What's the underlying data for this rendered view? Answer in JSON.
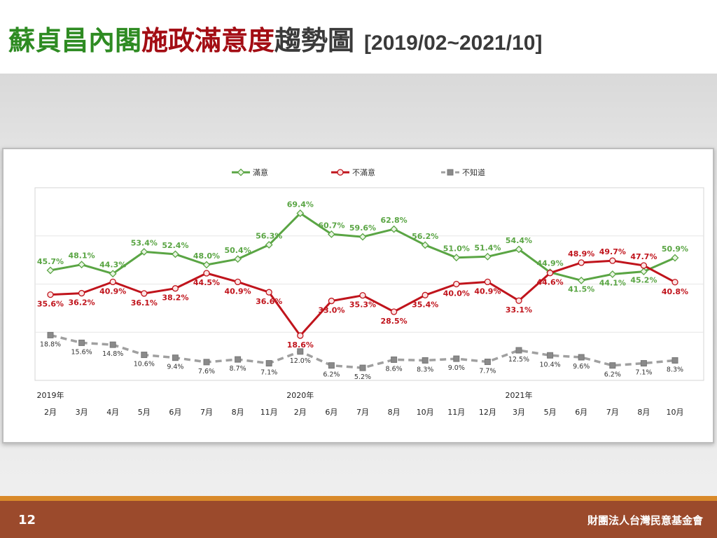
{
  "header": {
    "title_part1": "蘇貞昌內閣",
    "title_part2": "施政滿意度",
    "title_part3": "趨勢圖",
    "title_range": "[2019/02~2021/10]"
  },
  "footer": {
    "page_number": "12",
    "organization": "財團法人台灣民意基金會"
  },
  "colors": {
    "satisfied": "#5aa544",
    "dissatisfied": "#c0141c",
    "unknown": "#a0a0a0",
    "footer_bg": "#9b4a2c",
    "footer_accent": "#d98a2a"
  },
  "chart_data": {
    "type": "line",
    "categories": [
      "2月",
      "3月",
      "4月",
      "5月",
      "6月",
      "7月",
      "8月",
      "11月",
      "2月",
      "6月",
      "7月",
      "8月",
      "10月",
      "11月",
      "12月",
      "3月",
      "5月",
      "6月",
      "7月",
      "8月",
      "10月"
    ],
    "year_labels": [
      {
        "index": 0,
        "label": "2019年"
      },
      {
        "index": 8,
        "label": "2020年"
      },
      {
        "index": 15,
        "label": "2021年"
      }
    ],
    "ylim": [
      0,
      80
    ],
    "legend_position": "top",
    "grid": true,
    "series": [
      {
        "name": "滿意",
        "color": "#5aa544",
        "marker": "diamond",
        "dashed": false,
        "values": [
          45.7,
          48.1,
          44.3,
          53.4,
          52.4,
          48.0,
          50.4,
          56.3,
          69.4,
          60.7,
          59.6,
          62.8,
          56.2,
          51.0,
          51.4,
          54.4,
          44.9,
          41.5,
          44.1,
          45.2,
          50.9
        ],
        "labels": [
          "45.7%",
          "48.1%",
          "44.3%",
          "53.4%",
          "52.4%",
          "48.0%",
          "50.4%",
          "56.3%",
          "69.4%",
          "60.7%",
          "59.6%",
          "62.8%",
          "56.2%",
          "51.0%",
          "51.4%",
          "54.4%",
          "44.9%",
          "41.5%",
          "44.1%",
          "45.2%",
          "50.9%"
        ]
      },
      {
        "name": "不滿意",
        "color": "#c0141c",
        "marker": "circle",
        "dashed": false,
        "values": [
          35.6,
          36.2,
          40.9,
          36.1,
          38.2,
          44.5,
          40.9,
          36.6,
          18.6,
          33.0,
          35.3,
          28.5,
          35.4,
          40.0,
          40.9,
          33.1,
          44.6,
          48.9,
          49.7,
          47.7,
          40.8
        ],
        "labels": [
          "35.6%",
          "36.2%",
          "40.9%",
          "36.1%",
          "38.2%",
          "44.5%",
          "40.9%",
          "36.6%",
          "18.6%",
          "33.0%",
          "35.3%",
          "28.5%",
          "35.4%",
          "40.0%",
          "40.9%",
          "33.1%",
          "44.6%",
          "48.9%",
          "49.7%",
          "47.7%",
          "40.8%"
        ]
      },
      {
        "name": "不知道",
        "color": "#a0a0a0",
        "marker": "square",
        "dashed": true,
        "values": [
          18.8,
          15.6,
          14.8,
          10.6,
          9.4,
          7.6,
          8.7,
          7.1,
          12.0,
          6.2,
          5.2,
          8.6,
          8.3,
          9.0,
          7.7,
          12.5,
          10.4,
          9.6,
          6.2,
          7.1,
          8.3
        ],
        "labels": [
          "18.8%",
          "15.6%",
          "14.8%",
          "10.6%",
          "9.4%",
          "7.6%",
          "8.7%",
          "7.1%",
          "12.0%",
          "6.2%",
          "5.2%",
          "8.6%",
          "8.3%",
          "9.0%",
          "7.7%",
          "12.5%",
          "10.4%",
          "9.6%",
          "6.2%",
          "7.1%",
          "8.3%"
        ]
      }
    ]
  }
}
